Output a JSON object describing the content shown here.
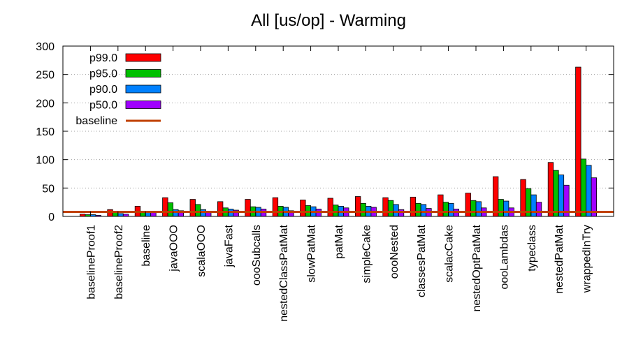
{
  "chart_data": {
    "type": "bar",
    "title": "All [us/op] - Warming",
    "xlabel": "",
    "ylabel": "",
    "ylim": [
      0,
      300
    ],
    "yticks": [
      0,
      50,
      100,
      150,
      200,
      250,
      300
    ],
    "grid": "y-dotted",
    "legend_position": "top-left",
    "categories": [
      "baselineProof1",
      "baselineProof2",
      "baseline",
      "javaOOO",
      "scalaOOO",
      "javaFast",
      "oooSubcalls",
      "nestedClassPatMat",
      "slowPatMat",
      "patMat",
      "simpleCake",
      "oooNested",
      "classesPatMat",
      "scalacCake",
      "nestedOptPatMat",
      "oooLambdas",
      "typeclass",
      "nestedPatMat",
      "wrappedInTry"
    ],
    "series": [
      {
        "name": "p99.0",
        "color": "#ff0000",
        "values": [
          4,
          12,
          18,
          33,
          30,
          26,
          30,
          33,
          29,
          32,
          35,
          33,
          34,
          38,
          41,
          70,
          65,
          95,
          263
        ]
      },
      {
        "name": "p95.0",
        "color": "#00c000",
        "values": [
          3,
          7,
          9,
          24,
          21,
          15,
          17,
          18,
          19,
          20,
          23,
          28,
          23,
          25,
          28,
          30,
          49,
          81,
          101
        ]
      },
      {
        "name": "p90.0",
        "color": "#0080ff",
        "values": [
          3,
          5,
          8,
          12,
          12,
          13,
          16,
          16,
          17,
          18,
          18,
          21,
          21,
          23,
          26,
          27,
          38,
          73,
          90
        ]
      },
      {
        "name": "p50.0",
        "color": "#a000ff",
        "values": [
          2,
          4,
          7,
          10,
          9,
          11,
          13,
          10,
          13,
          15,
          16,
          12,
          14,
          13,
          15,
          15,
          25,
          55,
          68
        ]
      }
    ],
    "baseline": {
      "name": "baseline",
      "color": "#c04000",
      "value": 8
    }
  }
}
